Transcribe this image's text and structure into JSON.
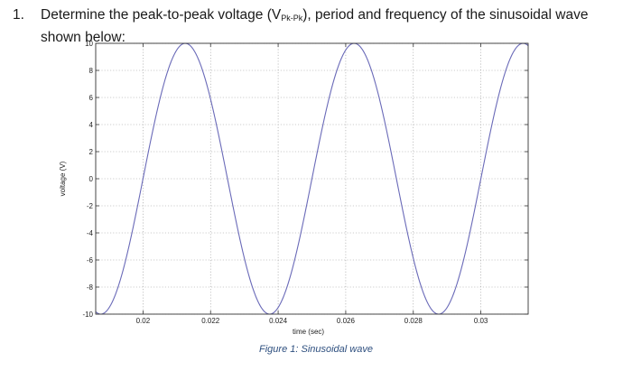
{
  "question": {
    "number": "1.",
    "text_before": "Determine the peak-to-peak voltage (V",
    "subscript": "Pk-Pk",
    "text_after": "), period and frequency of the sinusoidal wave shown below:"
  },
  "caption": "Figure 1: Sinusoidal wave",
  "colors": {
    "curve": "#6a6ab8",
    "axis": "#333333",
    "grid": "#9a9a9a",
    "caption": "#2e4f7f"
  },
  "chart_data": {
    "type": "line",
    "title": "",
    "xlabel": "time (sec)",
    "ylabel": "voltage (V)",
    "xlim": [
      0.0186,
      0.0314
    ],
    "ylim": [
      -10,
      10
    ],
    "xticks": [
      0.02,
      0.022,
      0.024,
      0.026,
      0.028,
      0.03
    ],
    "xtick_labels": [
      "0.02",
      "0.022",
      "0.024",
      "0.026",
      "0.028",
      "0.03"
    ],
    "yticks": [
      10,
      8,
      6,
      4,
      2,
      0,
      -2,
      -4,
      -6,
      -8,
      -10
    ],
    "ytick_labels": [
      "10",
      "8",
      "6",
      "4",
      "2",
      "0",
      "-2",
      "-4",
      "-6",
      "-8",
      "-10"
    ],
    "grid": true,
    "series": [
      {
        "function": "sine",
        "amplitude": 10,
        "frequency_hz": 200,
        "peak_times": [
          0.02125,
          0.02625,
          0.03125
        ],
        "trough_times": [
          0.02375,
          0.02875
        ]
      }
    ]
  }
}
